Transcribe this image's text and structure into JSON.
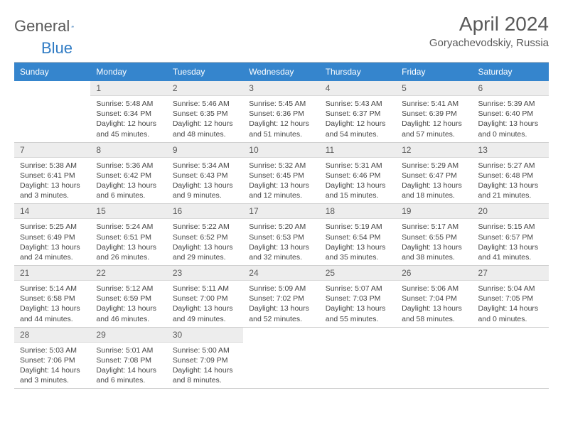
{
  "logo": {
    "text1": "General",
    "text2": "Blue"
  },
  "title": "April 2024",
  "location": "Goryachevodskiy, Russia",
  "colors": {
    "header_bg": "#3585cd",
    "header_text": "#ffffff",
    "daynum_bg": "#ededed",
    "text": "#5a5a5a",
    "border": "#d0d0d0"
  },
  "day_headers": [
    "Sunday",
    "Monday",
    "Tuesday",
    "Wednesday",
    "Thursday",
    "Friday",
    "Saturday"
  ],
  "weeks": [
    [
      {
        "n": "",
        "sr": "",
        "ss": "",
        "dl": ""
      },
      {
        "n": "1",
        "sr": "5:48 AM",
        "ss": "6:34 PM",
        "dl": "12 hours and 45 minutes."
      },
      {
        "n": "2",
        "sr": "5:46 AM",
        "ss": "6:35 PM",
        "dl": "12 hours and 48 minutes."
      },
      {
        "n": "3",
        "sr": "5:45 AM",
        "ss": "6:36 PM",
        "dl": "12 hours and 51 minutes."
      },
      {
        "n": "4",
        "sr": "5:43 AM",
        "ss": "6:37 PM",
        "dl": "12 hours and 54 minutes."
      },
      {
        "n": "5",
        "sr": "5:41 AM",
        "ss": "6:39 PM",
        "dl": "12 hours and 57 minutes."
      },
      {
        "n": "6",
        "sr": "5:39 AM",
        "ss": "6:40 PM",
        "dl": "13 hours and 0 minutes."
      }
    ],
    [
      {
        "n": "7",
        "sr": "5:38 AM",
        "ss": "6:41 PM",
        "dl": "13 hours and 3 minutes."
      },
      {
        "n": "8",
        "sr": "5:36 AM",
        "ss": "6:42 PM",
        "dl": "13 hours and 6 minutes."
      },
      {
        "n": "9",
        "sr": "5:34 AM",
        "ss": "6:43 PM",
        "dl": "13 hours and 9 minutes."
      },
      {
        "n": "10",
        "sr": "5:32 AM",
        "ss": "6:45 PM",
        "dl": "13 hours and 12 minutes."
      },
      {
        "n": "11",
        "sr": "5:31 AM",
        "ss": "6:46 PM",
        "dl": "13 hours and 15 minutes."
      },
      {
        "n": "12",
        "sr": "5:29 AM",
        "ss": "6:47 PM",
        "dl": "13 hours and 18 minutes."
      },
      {
        "n": "13",
        "sr": "5:27 AM",
        "ss": "6:48 PM",
        "dl": "13 hours and 21 minutes."
      }
    ],
    [
      {
        "n": "14",
        "sr": "5:25 AM",
        "ss": "6:49 PM",
        "dl": "13 hours and 24 minutes."
      },
      {
        "n": "15",
        "sr": "5:24 AM",
        "ss": "6:51 PM",
        "dl": "13 hours and 26 minutes."
      },
      {
        "n": "16",
        "sr": "5:22 AM",
        "ss": "6:52 PM",
        "dl": "13 hours and 29 minutes."
      },
      {
        "n": "17",
        "sr": "5:20 AM",
        "ss": "6:53 PM",
        "dl": "13 hours and 32 minutes."
      },
      {
        "n": "18",
        "sr": "5:19 AM",
        "ss": "6:54 PM",
        "dl": "13 hours and 35 minutes."
      },
      {
        "n": "19",
        "sr": "5:17 AM",
        "ss": "6:55 PM",
        "dl": "13 hours and 38 minutes."
      },
      {
        "n": "20",
        "sr": "5:15 AM",
        "ss": "6:57 PM",
        "dl": "13 hours and 41 minutes."
      }
    ],
    [
      {
        "n": "21",
        "sr": "5:14 AM",
        "ss": "6:58 PM",
        "dl": "13 hours and 44 minutes."
      },
      {
        "n": "22",
        "sr": "5:12 AM",
        "ss": "6:59 PM",
        "dl": "13 hours and 46 minutes."
      },
      {
        "n": "23",
        "sr": "5:11 AM",
        "ss": "7:00 PM",
        "dl": "13 hours and 49 minutes."
      },
      {
        "n": "24",
        "sr": "5:09 AM",
        "ss": "7:02 PM",
        "dl": "13 hours and 52 minutes."
      },
      {
        "n": "25",
        "sr": "5:07 AM",
        "ss": "7:03 PM",
        "dl": "13 hours and 55 minutes."
      },
      {
        "n": "26",
        "sr": "5:06 AM",
        "ss": "7:04 PM",
        "dl": "13 hours and 58 minutes."
      },
      {
        "n": "27",
        "sr": "5:04 AM",
        "ss": "7:05 PM",
        "dl": "14 hours and 0 minutes."
      }
    ],
    [
      {
        "n": "28",
        "sr": "5:03 AM",
        "ss": "7:06 PM",
        "dl": "14 hours and 3 minutes."
      },
      {
        "n": "29",
        "sr": "5:01 AM",
        "ss": "7:08 PM",
        "dl": "14 hours and 6 minutes."
      },
      {
        "n": "30",
        "sr": "5:00 AM",
        "ss": "7:09 PM",
        "dl": "14 hours and 8 minutes."
      },
      {
        "n": "",
        "sr": "",
        "ss": "",
        "dl": ""
      },
      {
        "n": "",
        "sr": "",
        "ss": "",
        "dl": ""
      },
      {
        "n": "",
        "sr": "",
        "ss": "",
        "dl": ""
      },
      {
        "n": "",
        "sr": "",
        "ss": "",
        "dl": ""
      }
    ]
  ],
  "labels": {
    "sunrise": "Sunrise:",
    "sunset": "Sunset:",
    "daylight": "Daylight:"
  }
}
